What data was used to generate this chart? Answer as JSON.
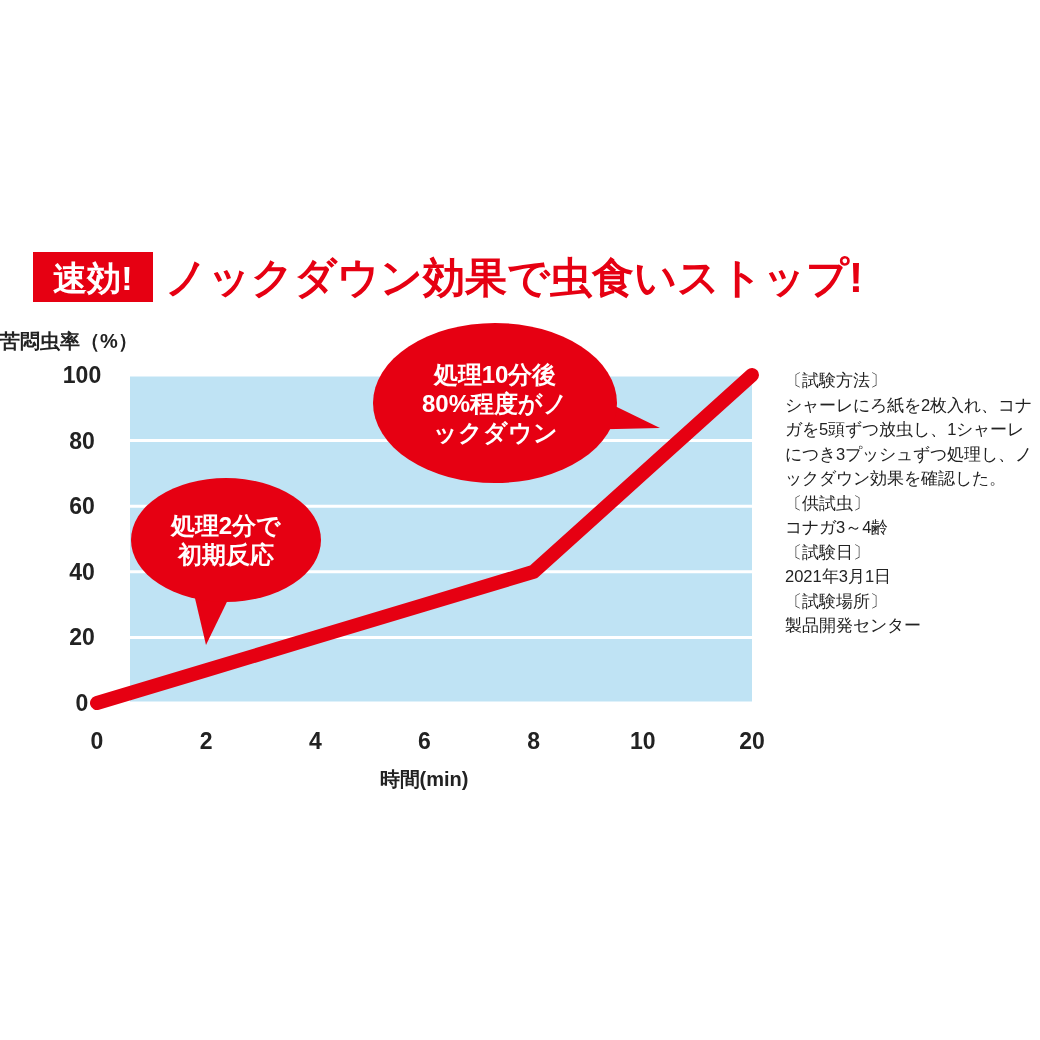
{
  "chart_data": {
    "type": "line",
    "title": "速効! ノックダウン効果で虫食いストップ!",
    "xlabel": "時間(min)",
    "ylabel": "苦悶虫率（%）",
    "categories": [
      "0",
      "2",
      "4",
      "6",
      "8",
      "10",
      "20"
    ],
    "series": [
      {
        "color": "#e60012",
        "values": [
          0,
          10,
          20,
          30,
          40,
          70,
          100
        ]
      }
    ],
    "ylim": [
      0,
      100
    ],
    "yticks": [
      0,
      20,
      40,
      60,
      80,
      100
    ],
    "grid": "y",
    "annotations": [
      "処理2分で初期反応",
      "処理10分後80%程度がノックダウン",
      "〔試験方法〕",
      "シャーレにろ紙を2枚入れ、コナガを5頭ずつ放虫し、1シャーレにつき3プッシュずつ処理し、ノックダウン効果を確認した。",
      "〔供試虫〕",
      "コナガ3～4齢",
      "〔試験日〕",
      "2021年3月1日",
      "〔試験場所〕",
      "製品開発センター"
    ]
  }
}
